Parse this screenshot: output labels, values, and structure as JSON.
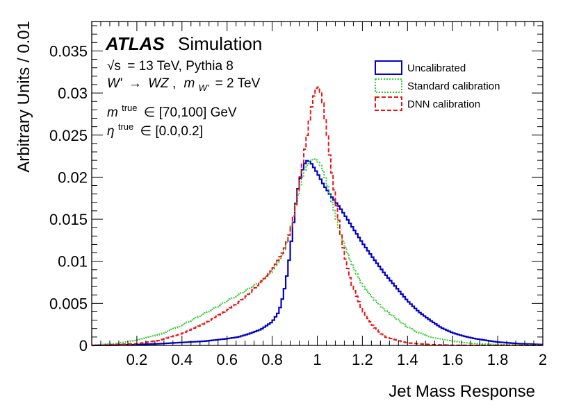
{
  "chart_data": {
    "type": "line",
    "xlabel": "Jet Mass Response",
    "ylabel": "Arbitrary Units / 0.01",
    "xlim": [
      0,
      2
    ],
    "ylim": [
      0,
      0.0385
    ],
    "x_ticks": [
      0.2,
      0.4,
      0.6,
      0.8,
      1,
      1.2,
      1.4,
      1.6,
      1.8,
      2
    ],
    "x_tick_labels": [
      "0.2",
      "0.4",
      "0.6",
      "0.8",
      "1",
      "1.2",
      "1.4",
      "1.6",
      "1.8",
      "2"
    ],
    "y_ticks": [
      0,
      0.005,
      0.01,
      0.015,
      0.02,
      0.025,
      0.03,
      0.035
    ],
    "y_tick_labels": [
      "0",
      "0.005",
      "0.01",
      "0.015",
      "0.02",
      "0.025",
      "0.03",
      "0.035"
    ],
    "annotations": {
      "atlas": "ATLAS",
      "atlas_suffix": "Simulation",
      "sqrt": "√s",
      "energy_line": "= 13 TeV, Pythia 8",
      "process_lhs": "W'",
      "arrow": "→",
      "process_rhs": "WZ",
      "sep": ",",
      "mass_symbol": "m",
      "mass_sub": "W'",
      "mass_value": "= 2 TeV",
      "mtrue_symbol": "m",
      "mtrue_sup": "true",
      "mtrue_range": "∈ [70,100] GeV",
      "eta_symbol": "η",
      "eta_sup": "true",
      "eta_range": "∈ [0.0,0.2]"
    },
    "legend_position": "top-right",
    "series": [
      {
        "name": "Uncalibrated",
        "color": "#0000cc",
        "style": "solid",
        "points": [
          [
            0.0,
            0.0
          ],
          [
            0.1,
            3e-05
          ],
          [
            0.2,
            0.0001
          ],
          [
            0.3,
            0.0002
          ],
          [
            0.4,
            0.00035
          ],
          [
            0.5,
            0.0005
          ],
          [
            0.6,
            0.0008
          ],
          [
            0.65,
            0.001
          ],
          [
            0.7,
            0.0014
          ],
          [
            0.75,
            0.0019
          ],
          [
            0.8,
            0.0028
          ],
          [
            0.83,
            0.004
          ],
          [
            0.85,
            0.006
          ],
          [
            0.87,
            0.009
          ],
          [
            0.89,
            0.0135
          ],
          [
            0.91,
            0.018
          ],
          [
            0.93,
            0.0205
          ],
          [
            0.95,
            0.022
          ],
          [
            0.97,
            0.0218
          ],
          [
            1.0,
            0.0205
          ],
          [
            1.03,
            0.019
          ],
          [
            1.06,
            0.0178
          ],
          [
            1.1,
            0.0164
          ],
          [
            1.15,
            0.0143
          ],
          [
            1.2,
            0.0122
          ],
          [
            1.25,
            0.0103
          ],
          [
            1.3,
            0.0085
          ],
          [
            1.35,
            0.0069
          ],
          [
            1.4,
            0.0053
          ],
          [
            1.45,
            0.004
          ],
          [
            1.5,
            0.003
          ],
          [
            1.55,
            0.0021
          ],
          [
            1.6,
            0.0015
          ],
          [
            1.65,
            0.0011
          ],
          [
            1.7,
            0.0008
          ],
          [
            1.8,
            0.0004
          ],
          [
            1.9,
            0.0002
          ],
          [
            2.0,
            0.0001
          ]
        ]
      },
      {
        "name": "Standard calibration",
        "color": "#33cc33",
        "style": "dotted",
        "points": [
          [
            0.0,
            3e-05
          ],
          [
            0.1,
            0.0002
          ],
          [
            0.2,
            0.0006
          ],
          [
            0.3,
            0.0013
          ],
          [
            0.4,
            0.0024
          ],
          [
            0.5,
            0.0038
          ],
          [
            0.55,
            0.0045
          ],
          [
            0.6,
            0.0053
          ],
          [
            0.65,
            0.006
          ],
          [
            0.7,
            0.0068
          ],
          [
            0.75,
            0.0076
          ],
          [
            0.8,
            0.0088
          ],
          [
            0.85,
            0.011
          ],
          [
            0.88,
            0.0135
          ],
          [
            0.9,
            0.016
          ],
          [
            0.92,
            0.0185
          ],
          [
            0.94,
            0.0205
          ],
          [
            0.96,
            0.0217
          ],
          [
            0.98,
            0.0222
          ],
          [
            1.0,
            0.022
          ],
          [
            1.02,
            0.0212
          ],
          [
            1.04,
            0.0195
          ],
          [
            1.06,
            0.0175
          ],
          [
            1.08,
            0.0155
          ],
          [
            1.1,
            0.0135
          ],
          [
            1.15,
            0.0098
          ],
          [
            1.2,
            0.0072
          ],
          [
            1.25,
            0.0055
          ],
          [
            1.3,
            0.0042
          ],
          [
            1.35,
            0.0032
          ],
          [
            1.4,
            0.0022
          ],
          [
            1.45,
            0.0015
          ],
          [
            1.5,
            0.001
          ],
          [
            1.6,
            0.0005
          ],
          [
            1.7,
            0.0002
          ],
          [
            1.8,
            0.0001
          ],
          [
            2.0,
            3e-05
          ]
        ]
      },
      {
        "name": "DNN calibration",
        "color": "#ee1111",
        "style": "dashed",
        "points": [
          [
            0.0,
            0.0
          ],
          [
            0.2,
            0.0002
          ],
          [
            0.3,
            0.0006
          ],
          [
            0.4,
            0.0014
          ],
          [
            0.5,
            0.0026
          ],
          [
            0.6,
            0.0042
          ],
          [
            0.65,
            0.0051
          ],
          [
            0.7,
            0.0062
          ],
          [
            0.75,
            0.0075
          ],
          [
            0.8,
            0.009
          ],
          [
            0.85,
            0.0112
          ],
          [
            0.88,
            0.0135
          ],
          [
            0.9,
            0.016
          ],
          [
            0.92,
            0.0192
          ],
          [
            0.94,
            0.0225
          ],
          [
            0.96,
            0.0258
          ],
          [
            0.98,
            0.0292
          ],
          [
            1.0,
            0.031
          ],
          [
            1.02,
            0.0298
          ],
          [
            1.04,
            0.026
          ],
          [
            1.06,
            0.0215
          ],
          [
            1.08,
            0.0175
          ],
          [
            1.1,
            0.014
          ],
          [
            1.12,
            0.0108
          ],
          [
            1.15,
            0.0075
          ],
          [
            1.2,
            0.0042
          ],
          [
            1.25,
            0.0022
          ],
          [
            1.3,
            0.001
          ],
          [
            1.4,
            0.0003
          ],
          [
            1.5,
            0.0001
          ],
          [
            1.6,
            2e-05
          ],
          [
            2.0,
            0.0
          ]
        ]
      }
    ]
  }
}
